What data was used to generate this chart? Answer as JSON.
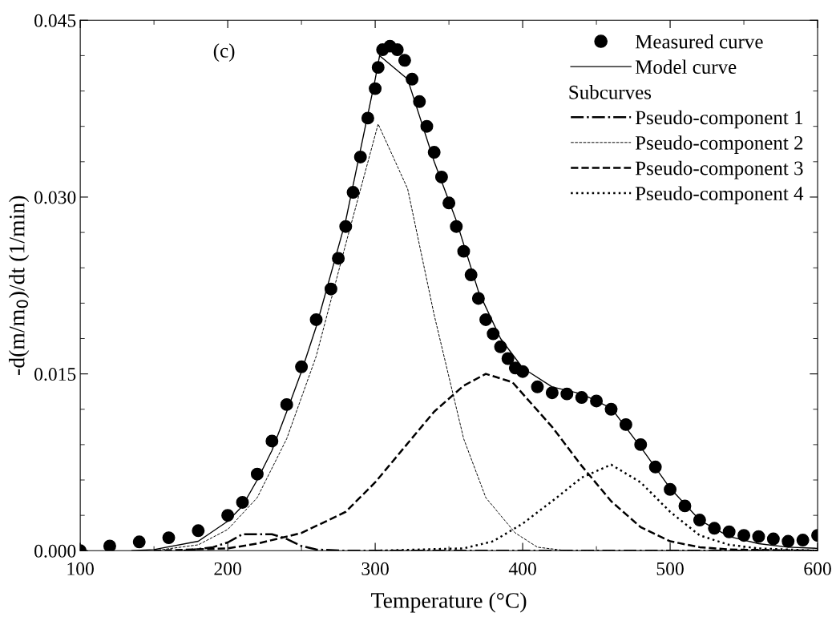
{
  "chart_data": {
    "type": "line",
    "xlabel": "Temperature (°C)",
    "ylabel": "-d(m/m$_{0}$)/dt (1/min)",
    "annotations": [
      "(c)"
    ],
    "legend_title": "Subcurves",
    "legend": "top right",
    "grid": false,
    "xlim": [
      100,
      600
    ],
    "xticks": [
      100,
      200,
      300,
      400,
      500,
      600
    ],
    "ylim": [
      0,
      0.045
    ],
    "yticks": [
      {
        "value": 0,
        "label": "0.000"
      },
      {
        "value": 0.015,
        "label": "0.015"
      },
      {
        "value": 0.03,
        "label": "0.030"
      },
      {
        "value": 0.045,
        "label": "0.045"
      }
    ],
    "series": [
      {
        "name": "Measured curve",
        "type": "scatter",
        "marker": "circle",
        "color": "#000000",
        "x": [
          100,
          120,
          140,
          160,
          180,
          200,
          210,
          220,
          230,
          240,
          250,
          260,
          270,
          275,
          280,
          285,
          290,
          295,
          300,
          302,
          305,
          310,
          315,
          320,
          325,
          330,
          335,
          340,
          345,
          350,
          355,
          360,
          365,
          370,
          375,
          380,
          385,
          390,
          395,
          400,
          410,
          420,
          430,
          440,
          450,
          460,
          470,
          480,
          490,
          500,
          510,
          520,
          530,
          540,
          550,
          560,
          570,
          580,
          590,
          600
        ],
        "values": [
          0,
          0.0004,
          0.00075,
          0.0011,
          0.0017,
          0.003,
          0.0041,
          0.0065,
          0.0093,
          0.0124,
          0.0156,
          0.0196,
          0.0222,
          0.0248,
          0.0275,
          0.0304,
          0.0334,
          0.0367,
          0.0392,
          0.041,
          0.0425,
          0.0428,
          0.0425,
          0.0416,
          0.04,
          0.0381,
          0.036,
          0.0338,
          0.0317,
          0.0295,
          0.0275,
          0.0254,
          0.0234,
          0.0214,
          0.0196,
          0.0184,
          0.0173,
          0.0163,
          0.0155,
          0.0152,
          0.0139,
          0.0134,
          0.0133,
          0.013,
          0.0127,
          0.012,
          0.0107,
          0.009,
          0.0071,
          0.0052,
          0.0038,
          0.0026,
          0.0019,
          0.0016,
          0.0013,
          0.0012,
          0.001,
          0.0008,
          0.0009,
          0.0013
        ]
      },
      {
        "name": "Model curve",
        "line_style": "solid",
        "color": "#000000",
        "x": [
          135,
          150,
          180,
          200,
          210,
          220,
          230,
          240,
          250,
          260,
          270,
          280,
          290,
          300,
          303,
          322,
          340,
          355,
          370,
          385,
          400,
          420,
          440,
          460,
          480,
          500,
          520,
          540,
          560,
          580,
          600
        ],
        "values": [
          0,
          0.0001,
          0.0008,
          0.0025,
          0.0038,
          0.006,
          0.0085,
          0.0118,
          0.0152,
          0.019,
          0.0235,
          0.028,
          0.034,
          0.04,
          0.042,
          0.04,
          0.033,
          0.028,
          0.022,
          0.018,
          0.0155,
          0.0139,
          0.0133,
          0.0121,
          0.0088,
          0.0053,
          0.0026,
          0.0012,
          0.0006,
          0.0003,
          0.0002
        ]
      },
      {
        "name": "Pseudo-component 1",
        "line_style": "dashdot",
        "color": "#000000",
        "x": [
          170,
          190,
          200,
          210,
          230,
          240,
          250,
          260,
          280,
          600
        ],
        "values": [
          0,
          0.0003,
          0.0007,
          0.0014,
          0.0014,
          0.001,
          0.0004,
          0.0001,
          0,
          0
        ]
      },
      {
        "name": "Pseudo-component 2",
        "line_style": "dashed",
        "color": "#000000",
        "x": [
          150,
          180,
          200,
          220,
          240,
          260,
          280,
          302,
          322,
          340,
          360,
          375,
          395,
          410,
          430,
          600
        ],
        "values": [
          0,
          0.0005,
          0.0018,
          0.0045,
          0.0095,
          0.0165,
          0.026,
          0.0362,
          0.0307,
          0.02,
          0.0095,
          0.0045,
          0.0015,
          0.0003,
          0,
          0
        ]
      },
      {
        "name": "Pseudo-component 3",
        "line_style": "dashed",
        "color": "#000000",
        "x": [
          150,
          200,
          220,
          250,
          280,
          300,
          320,
          340,
          360,
          375,
          393,
          420,
          440,
          460,
          480,
          500,
          520,
          540,
          600
        ],
        "values": [
          0,
          0.0002,
          0.0006,
          0.0015,
          0.0033,
          0.0058,
          0.0088,
          0.0118,
          0.014,
          0.015,
          0.0143,
          0.0105,
          0.0072,
          0.0042,
          0.002,
          0.0008,
          0.0003,
          0.0001,
          0
        ]
      },
      {
        "name": "Pseudo-component 4",
        "line_style": "dotted",
        "color": "#000000",
        "x": [
          300,
          360,
          380,
          400,
          420,
          440,
          460,
          480,
          500,
          520,
          540,
          560,
          600
        ],
        "values": [
          0,
          0.0002,
          0.0008,
          0.0023,
          0.0042,
          0.0062,
          0.0073,
          0.0058,
          0.0033,
          0.0013,
          0.0005,
          0.0002,
          0
        ]
      }
    ]
  }
}
